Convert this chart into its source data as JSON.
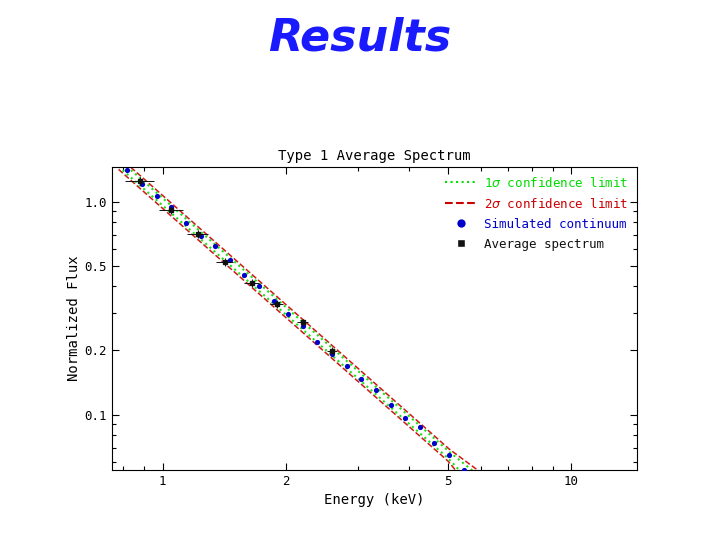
{
  "title": "Results",
  "subtitle": "Type 1 Average Spectrum",
  "xlabel": "Energy (keV)",
  "ylabel": "Normalized Flux",
  "title_color": "#1a1aff",
  "title_fontsize": 32,
  "subtitle_fontsize": 10,
  "axis_label_fontsize": 10,
  "tick_fontsize": 9,
  "bg_color": "#ffffff",
  "plot_bg_color": "#ffffff",
  "sigma1_color": "#00dd00",
  "sigma2_color": "#cc0000",
  "sim_color": "#0000cc",
  "avg_color": "#111111",
  "xlim_log": [
    0.75,
    14.5
  ],
  "ylim_log": [
    0.055,
    1.45
  ],
  "xticks": [
    1,
    2,
    5,
    10
  ],
  "yticks": [
    0.1,
    0.2,
    0.5,
    1.0
  ]
}
